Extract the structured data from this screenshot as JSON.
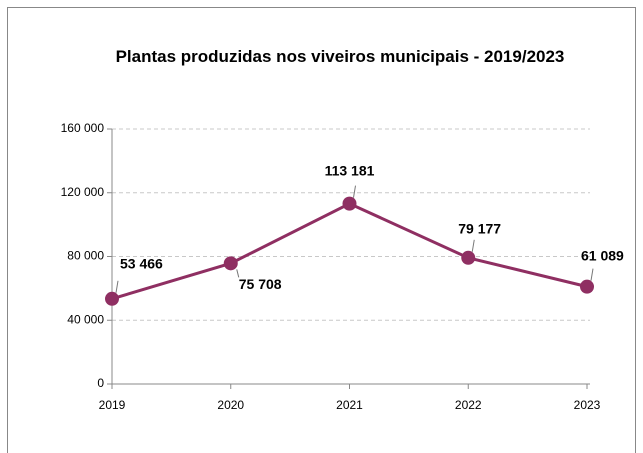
{
  "chart_data": {
    "type": "line",
    "title": "Plantas produzidas nos viveiros municipais - 2019/2023",
    "categories": [
      "2019",
      "2020",
      "2021",
      "2022",
      "2023"
    ],
    "values": [
      53466,
      75708,
      113181,
      79177,
      61089
    ],
    "value_labels": [
      "53 466",
      "75 708",
      "113 181",
      "79 177",
      "61 089"
    ],
    "color": "#8f2f62",
    "ylim": [
      0,
      160000
    ],
    "yticks": [
      0,
      {
        "value": 40000,
        "label": "40 000"
      },
      {
        "value": 80000,
        "label": "80 000"
      },
      {
        "value": 120000,
        "label": "120 000"
      },
      {
        "value": 160000,
        "label": "160 000"
      }
    ],
    "grid": true
  }
}
